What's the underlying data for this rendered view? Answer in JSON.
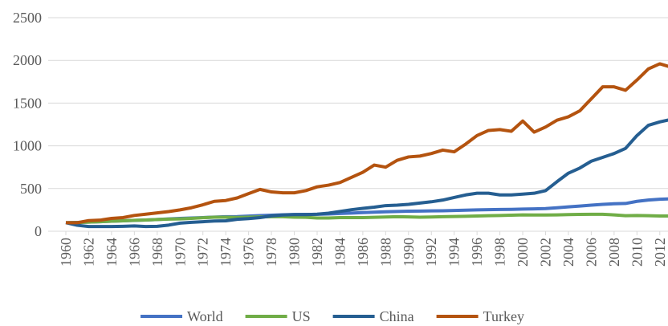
{
  "chart_data": {
    "type": "line",
    "x": [
      1960,
      1961,
      1962,
      1963,
      1964,
      1965,
      1966,
      1967,
      1968,
      1969,
      1970,
      1971,
      1972,
      1973,
      1974,
      1975,
      1976,
      1977,
      1978,
      1979,
      1980,
      1981,
      1982,
      1983,
      1984,
      1985,
      1986,
      1987,
      1988,
      1989,
      1990,
      1991,
      1992,
      1993,
      1994,
      1995,
      1996,
      1997,
      1998,
      1999,
      2000,
      2001,
      2002,
      2003,
      2004,
      2005,
      2006,
      2007,
      2008,
      2009,
      2010,
      2011,
      2012,
      2013
    ],
    "xlim": [
      1960,
      2013
    ],
    "xticks": [
      1960,
      1962,
      1964,
      1966,
      1968,
      1970,
      1972,
      1974,
      1976,
      1978,
      1980,
      1982,
      1984,
      1986,
      1988,
      1990,
      1992,
      1994,
      1996,
      1998,
      2000,
      2002,
      2004,
      2006,
      2008,
      2010,
      2012
    ],
    "ylim": [
      0,
      2500
    ],
    "yticks": [
      0,
      500,
      1000,
      1500,
      2000,
      2500
    ],
    "grid": true,
    "legend": "bottom",
    "series": [
      {
        "name": "World",
        "color": "#4472c4",
        "values": [
          100,
          103,
          107,
          112,
          117,
          122,
          127,
          132,
          138,
          144,
          150,
          155,
          160,
          166,
          170,
          172,
          178,
          183,
          188,
          193,
          196,
          197,
          198,
          202,
          208,
          213,
          218,
          223,
          228,
          232,
          235,
          236,
          238,
          240,
          243,
          247,
          250,
          253,
          255,
          256,
          260,
          262,
          265,
          275,
          285,
          295,
          305,
          315,
          322,
          325,
          350,
          365,
          375,
          380
        ]
      },
      {
        "name": "US",
        "color": "#70ad47",
        "values": [
          100,
          102,
          107,
          112,
          117,
          122,
          128,
          132,
          137,
          142,
          145,
          150,
          158,
          165,
          165,
          162,
          165,
          168,
          170,
          170,
          165,
          163,
          155,
          155,
          160,
          160,
          160,
          163,
          167,
          170,
          168,
          165,
          167,
          170,
          173,
          175,
          178,
          182,
          185,
          188,
          192,
          190,
          190,
          192,
          195,
          197,
          198,
          198,
          192,
          182,
          185,
          182,
          178,
          178
        ]
      },
      {
        "name": "China",
        "color": "#255e91",
        "values": [
          100,
          70,
          55,
          55,
          55,
          58,
          62,
          55,
          58,
          72,
          95,
          105,
          112,
          120,
          122,
          140,
          148,
          160,
          180,
          190,
          195,
          195,
          200,
          212,
          232,
          252,
          268,
          282,
          300,
          305,
          315,
          330,
          345,
          365,
          395,
          425,
          445,
          445,
          425,
          425,
          435,
          445,
          475,
          580,
          680,
          740,
          820,
          865,
          910,
          970,
          1120,
          1240,
          1280,
          1310
        ]
      },
      {
        "name": "Turkey",
        "color": "#b4530f",
        "values": [
          100,
          100,
          125,
          130,
          150,
          160,
          185,
          200,
          215,
          230,
          250,
          275,
          310,
          350,
          360,
          390,
          440,
          490,
          460,
          450,
          450,
          475,
          520,
          540,
          570,
          630,
          690,
          775,
          750,
          830,
          870,
          880,
          910,
          950,
          930,
          1020,
          1120,
          1180,
          1190,
          1170,
          1290,
          1160,
          1220,
          1300,
          1340,
          1410,
          1550,
          1690,
          1690,
          1650,
          1770,
          1900,
          1960,
          1920
        ]
      }
    ]
  }
}
